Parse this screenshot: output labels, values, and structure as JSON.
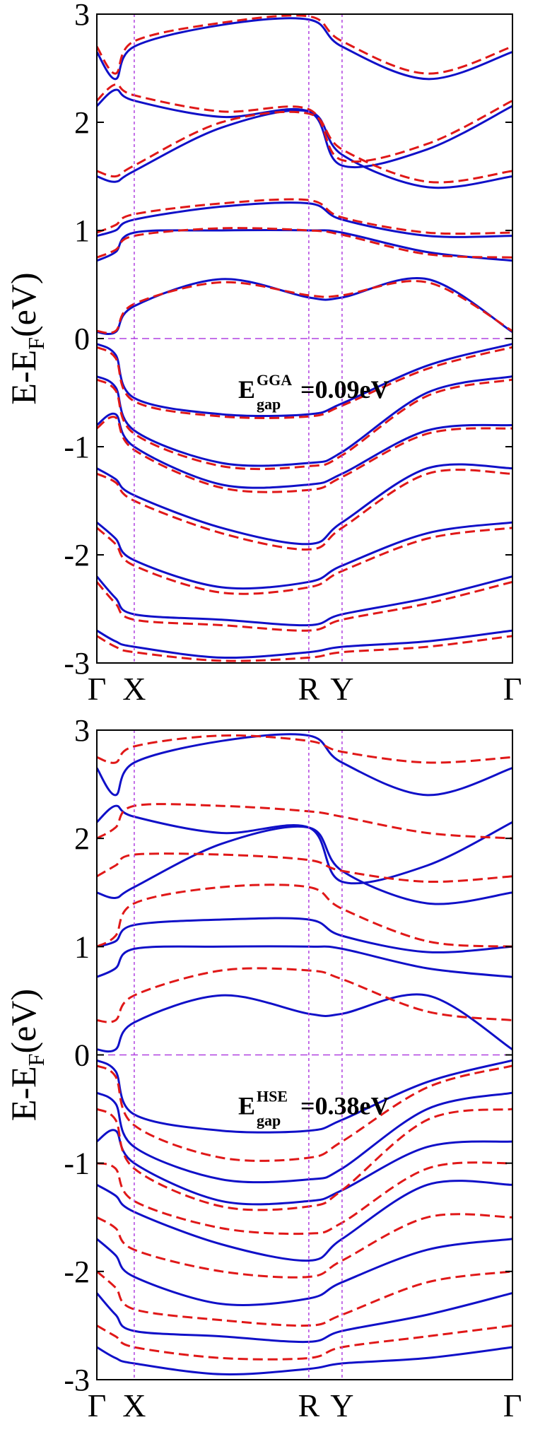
{
  "colors": {
    "spin_up": "#1010c8",
    "spin_down": "#e01818",
    "kpoint_lines": "#b040e0",
    "fermi_line": "#b040e0"
  },
  "chart_data": [
    {
      "type": "line",
      "xlabel": "",
      "ylabel_main": "E-E",
      "ylabel_sub": "F",
      "ylabel_unit": "(eV)",
      "ylim": [
        -3,
        3
      ],
      "yticks": [
        -3,
        -2,
        -1,
        0,
        1,
        2,
        3
      ],
      "ytick_labels": [
        "-3",
        "-2",
        "-1",
        "0",
        "1",
        "2",
        "3"
      ],
      "kpoints": [
        {
          "label": "Γ",
          "x": 0
        },
        {
          "label": "X",
          "x": 0.09
        },
        {
          "label": "R",
          "x": 0.51
        },
        {
          "label": "Y",
          "x": 0.59
        },
        {
          "label": "Γ",
          "x": 1.0
        }
      ],
      "fermi_level": 0,
      "annotation": {
        "main": "E",
        "sup": "GGA",
        "sub": "gap",
        "value": "=0.09eV"
      },
      "series": [
        {
          "spin": "up",
          "style": "solid",
          "bands": [
            [
              0.06,
              0.06,
              0.3,
              0.55,
              0.38,
              0.38,
              0.55,
              0.06
            ],
            [
              0.72,
              0.8,
              0.98,
              1.0,
              1.0,
              0.98,
              0.8,
              0.72
            ],
            [
              0.95,
              1.0,
              1.1,
              1.22,
              1.25,
              1.1,
              0.95,
              0.95
            ],
            [
              1.5,
              1.45,
              1.55,
              1.95,
              2.1,
              1.7,
              1.4,
              1.5
            ],
            [
              2.15,
              2.3,
              2.2,
              2.05,
              2.1,
              1.6,
              1.75,
              2.15
            ],
            [
              2.65,
              2.4,
              2.7,
              2.9,
              2.95,
              2.7,
              2.4,
              2.65
            ],
            [
              -0.05,
              -0.15,
              -0.55,
              -0.7,
              -0.7,
              -0.6,
              -0.25,
              -0.05
            ],
            [
              -0.35,
              -0.45,
              -0.85,
              -1.15,
              -1.15,
              -1.05,
              -0.5,
              -0.35
            ],
            [
              -0.8,
              -0.7,
              -1.0,
              -1.35,
              -1.35,
              -1.25,
              -0.85,
              -0.8
            ],
            [
              -1.2,
              -1.3,
              -1.45,
              -1.75,
              -1.9,
              -1.7,
              -1.2,
              -1.2
            ],
            [
              -1.7,
              -1.85,
              -2.05,
              -2.3,
              -2.25,
              -2.1,
              -1.8,
              -1.7
            ],
            [
              -2.2,
              -2.4,
              -2.55,
              -2.6,
              -2.65,
              -2.55,
              -2.4,
              -2.2
            ],
            [
              -2.7,
              -2.8,
              -2.85,
              -2.95,
              -2.9,
              -2.85,
              -2.8,
              -2.7
            ]
          ]
        },
        {
          "spin": "down",
          "style": "dashed",
          "bands": [
            [
              0.07,
              0.07,
              0.32,
              0.52,
              0.4,
              0.4,
              0.52,
              0.07
            ],
            [
              0.75,
              0.82,
              0.95,
              1.02,
              1.0,
              0.96,
              0.78,
              0.75
            ],
            [
              0.98,
              1.05,
              1.15,
              1.25,
              1.28,
              1.12,
              0.98,
              0.98
            ],
            [
              1.55,
              1.5,
              1.6,
              2.0,
              2.08,
              1.75,
              1.45,
              1.55
            ],
            [
              2.2,
              2.35,
              2.25,
              2.1,
              2.12,
              1.65,
              1.8,
              2.2
            ],
            [
              2.7,
              2.45,
              2.75,
              2.92,
              2.98,
              2.75,
              2.45,
              2.7
            ],
            [
              -0.08,
              -0.18,
              -0.58,
              -0.72,
              -0.72,
              -0.62,
              -0.28,
              -0.08
            ],
            [
              -0.38,
              -0.48,
              -0.88,
              -1.18,
              -1.18,
              -1.08,
              -0.53,
              -0.38
            ],
            [
              -0.83,
              -0.73,
              -1.03,
              -1.38,
              -1.4,
              -1.28,
              -0.88,
              -0.83
            ],
            [
              -1.25,
              -1.33,
              -1.5,
              -1.8,
              -1.95,
              -1.75,
              -1.25,
              -1.25
            ],
            [
              -1.75,
              -1.9,
              -2.1,
              -2.35,
              -2.3,
              -2.15,
              -1.85,
              -1.75
            ],
            [
              -2.25,
              -2.45,
              -2.6,
              -2.65,
              -2.7,
              -2.6,
              -2.45,
              -2.25
            ],
            [
              -2.75,
              -2.85,
              -2.9,
              -2.98,
              -2.95,
              -2.9,
              -2.85,
              -2.75
            ]
          ]
        }
      ]
    },
    {
      "type": "line",
      "xlabel": "",
      "ylabel_main": "E-E",
      "ylabel_sub": "F",
      "ylabel_unit": "(eV)",
      "ylim": [
        -3,
        3
      ],
      "yticks": [
        -3,
        -2,
        -1,
        0,
        1,
        2,
        3
      ],
      "ytick_labels": [
        "-3",
        "-2",
        "-1",
        "0",
        "1",
        "2",
        "3"
      ],
      "kpoints": [
        {
          "label": "Γ",
          "x": 0
        },
        {
          "label": "X",
          "x": 0.09
        },
        {
          "label": "R",
          "x": 0.51
        },
        {
          "label": "Y",
          "x": 0.59
        },
        {
          "label": "Γ",
          "x": 1.0
        }
      ],
      "fermi_level": 0,
      "annotation": {
        "main": "E",
        "sup": "HSE",
        "sub": "gap",
        "value": "=0.38eV"
      },
      "series": [
        {
          "spin": "up",
          "style": "solid",
          "bands": [
            [
              0.05,
              0.05,
              0.3,
              0.55,
              0.38,
              0.38,
              0.55,
              0.05
            ],
            [
              0.72,
              0.8,
              0.98,
              1.0,
              1.0,
              0.98,
              0.8,
              0.72
            ],
            [
              1.0,
              1.05,
              1.2,
              1.25,
              1.25,
              1.1,
              0.95,
              1.0
            ],
            [
              1.5,
              1.45,
              1.55,
              1.95,
              2.1,
              1.7,
              1.4,
              1.5
            ],
            [
              2.15,
              2.3,
              2.2,
              2.05,
              2.1,
              1.6,
              1.75,
              2.15
            ],
            [
              2.65,
              2.4,
              2.7,
              2.9,
              2.95,
              2.7,
              2.4,
              2.65
            ],
            [
              -0.05,
              -0.15,
              -0.55,
              -0.7,
              -0.7,
              -0.6,
              -0.25,
              -0.05
            ],
            [
              -0.35,
              -0.45,
              -0.85,
              -1.15,
              -1.15,
              -1.05,
              -0.5,
              -0.35
            ],
            [
              -0.8,
              -0.7,
              -1.0,
              -1.35,
              -1.35,
              -1.25,
              -0.85,
              -0.8
            ],
            [
              -1.2,
              -1.3,
              -1.45,
              -1.75,
              -1.9,
              -1.7,
              -1.2,
              -1.2
            ],
            [
              -1.7,
              -1.85,
              -2.05,
              -2.3,
              -2.25,
              -2.1,
              -1.8,
              -1.7
            ],
            [
              -2.2,
              -2.4,
              -2.55,
              -2.6,
              -2.65,
              -2.55,
              -2.4,
              -2.2
            ],
            [
              -2.7,
              -2.8,
              -2.85,
              -2.95,
              -2.9,
              -2.85,
              -2.8,
              -2.7
            ]
          ]
        },
        {
          "spin": "down",
          "style": "dashed",
          "bands": [
            [
              0.32,
              0.32,
              0.55,
              0.78,
              0.78,
              0.7,
              0.4,
              0.32
            ],
            [
              1.0,
              1.1,
              1.4,
              1.55,
              1.55,
              1.35,
              1.05,
              1.0
            ],
            [
              1.65,
              1.75,
              1.85,
              1.85,
              1.8,
              1.7,
              1.6,
              1.65
            ],
            [
              2.0,
              2.1,
              2.3,
              2.3,
              2.25,
              2.2,
              2.05,
              2.0
            ],
            [
              2.75,
              2.7,
              2.85,
              2.95,
              2.9,
              2.8,
              2.7,
              2.75
            ],
            [
              -0.1,
              -0.2,
              -0.65,
              -0.95,
              -0.95,
              -0.8,
              -0.3,
              -0.1
            ],
            [
              -0.5,
              -0.6,
              -1.05,
              -1.4,
              -1.4,
              -1.25,
              -0.6,
              -0.5
            ],
            [
              -1.0,
              -1.05,
              -1.35,
              -1.6,
              -1.65,
              -1.55,
              -1.05,
              -1.0
            ],
            [
              -1.5,
              -1.6,
              -1.8,
              -2.0,
              -2.05,
              -1.9,
              -1.5,
              -1.5
            ],
            [
              -2.0,
              -2.15,
              -2.35,
              -2.45,
              -2.5,
              -2.4,
              -2.1,
              -2.0
            ],
            [
              -2.5,
              -2.6,
              -2.7,
              -2.8,
              -2.8,
              -2.7,
              -2.6,
              -2.5
            ]
          ]
        }
      ]
    }
  ]
}
